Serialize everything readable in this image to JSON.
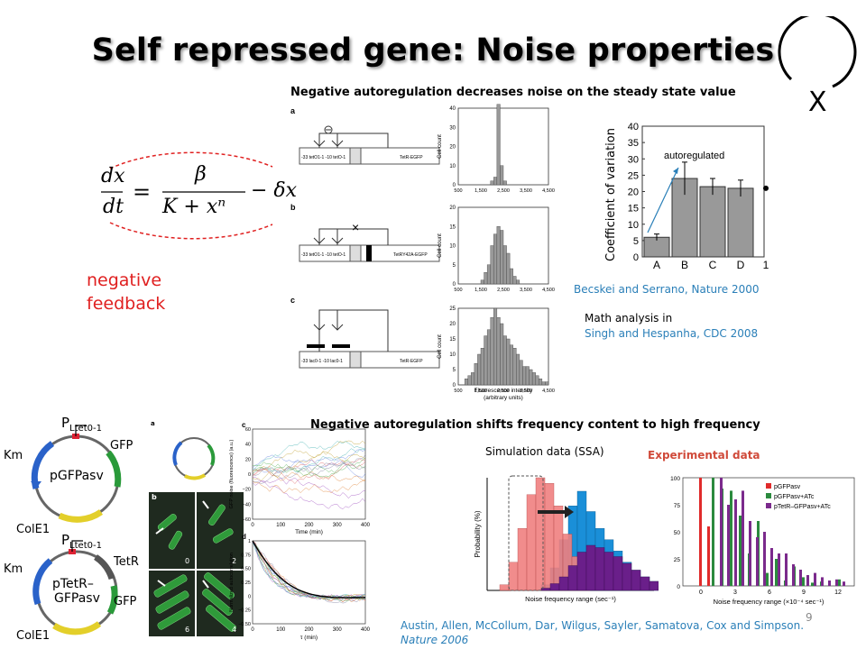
{
  "slide": {
    "title": "Self repressed gene: Noise properties",
    "page_number": "9",
    "x_label": "X"
  },
  "top_section": {
    "heading": "Negative autoregulation decreases noise on the steady state value",
    "equation": {
      "lhs": "dx/dt =",
      "numerator": "β",
      "denominator": "K + xⁿ",
      "tail": "− δx"
    },
    "feedback_label": [
      "negative",
      "feedback"
    ],
    "panel_letters": [
      "a",
      "b",
      "c"
    ],
    "construct_labels": [
      "TetR-EGFP",
      "TetRY42A-EGFP",
      "TetR-EGFP"
    ],
    "promoter_labels": [
      "-33",
      "tetO--1",
      "-10",
      "tetO--1"
    ],
    "hist_xlabel": "Fluorescence intensity",
    "hist_xlabel2": "(arbitrary units)",
    "hist_ylabel": "Cell count",
    "hist_xticks": [
      "500",
      "1,500",
      "2,500",
      "3,500",
      "4,500"
    ],
    "hist_a": {
      "yticks": [
        "0",
        "10",
        "20",
        "30",
        "40"
      ],
      "values": [
        0,
        0,
        0,
        0,
        0,
        0,
        0,
        0,
        0,
        0,
        2,
        4,
        42,
        10,
        2,
        0,
        0,
        0,
        0,
        0,
        0,
        0,
        0,
        0,
        0,
        0,
        0,
        0
      ]
    },
    "hist_b": {
      "yticks": [
        "0",
        "5",
        "10",
        "15",
        "20"
      ],
      "values": [
        0,
        0,
        0,
        0,
        0,
        0,
        0,
        1,
        3,
        5,
        10,
        13,
        15,
        14,
        10,
        8,
        4,
        2,
        1,
        0,
        0,
        0,
        0,
        0,
        0,
        0,
        0,
        0
      ]
    },
    "hist_c": {
      "yticks": [
        "0",
        "5",
        "10",
        "15",
        "20",
        "25"
      ],
      "values": [
        0,
        0,
        2,
        3,
        4,
        7,
        10,
        12,
        16,
        18,
        22,
        25,
        22,
        20,
        16,
        15,
        13,
        12,
        10,
        8,
        6,
        6,
        5,
        4,
        3,
        2,
        1,
        1
      ]
    },
    "cv_chart": {
      "ylabel": "Coefficient of variation",
      "annotation": "autoregulated",
      "categories": [
        "A",
        "B",
        "C",
        "D"
      ],
      "values": [
        6,
        24,
        21.5,
        21
      ],
      "errors": [
        1,
        5,
        2.5,
        2.5
      ],
      "yticks": [
        "0",
        "5",
        "10",
        "15",
        "20",
        "25",
        "30",
        "35",
        "40"
      ],
      "extra_tick": "1"
    },
    "citation": "Becskei and Serrano, Nature 2000",
    "math_line1": "Math analysis in",
    "math_line2": "Singh and Hespanha, CDC 2008"
  },
  "bottom_section": {
    "heading": "Negative autoregulation shifts frequency content to high frequency",
    "plasmid1": {
      "promoter": "P",
      "promoter_sub": "Ltet0-1",
      "name": "pGFPasv",
      "genes": [
        "Km",
        "GFP",
        "ColE1"
      ]
    },
    "plasmid2": {
      "promoter": "P",
      "promoter_sub": "Ltet0-1",
      "name_line1": "pTetR–",
      "name_line2": "GFPasv",
      "genes": [
        "Km",
        "TetR",
        "GFP",
        "ColE1"
      ]
    },
    "micro_panels": [
      "a",
      "b",
      "0",
      "2",
      "6",
      "4"
    ],
    "timeseries": {
      "panel_c": "c",
      "panel_d": "d",
      "c_ylabel": "GFP noise (fluorescence) (a.u.)",
      "c_xlabel": "Time (min)",
      "c_yticks": [
        "60",
        "40",
        "20",
        "0",
        "−20",
        "−40",
        "−60"
      ],
      "xticks": [
        "0",
        "100",
        "200",
        "300",
        "400"
      ],
      "d_ylabel": "Normalized autocorrelation",
      "d_xlabel": "τ (min)",
      "d_yticks": [
        "1",
        "0.75",
        "0.50",
        "0.25",
        "0",
        "−0.25",
        "−0.50"
      ]
    },
    "sim_label": "Simulation data (SSA)",
    "exp_label": "Experimental data",
    "sim_chart": {
      "ylabel": "Probability (%)",
      "xlabel": "Noise frequency range (sec⁻¹)"
    },
    "exp_chart": {
      "legend": [
        "pGFPasv",
        "pGFPasv+ATc",
        "pTetR–GFPasv+ATc"
      ],
      "legend_colors": [
        "#e02b2b",
        "#2b8a3e",
        "#7b2a8c"
      ],
      "yticks": [
        "0",
        "25",
        "50",
        "75",
        "100"
      ],
      "xticks": [
        "0",
        "3",
        "6",
        "9",
        "12"
      ],
      "xlabel": "Noise frequency range (×10⁻⁴ sec⁻¹)"
    },
    "citation_line1": "Austin, Allen, McCollum, Dar, Wilgus, Sayler, Samatova, Cox and  Simpson.",
    "citation_line2": "Nature 2006"
  }
}
